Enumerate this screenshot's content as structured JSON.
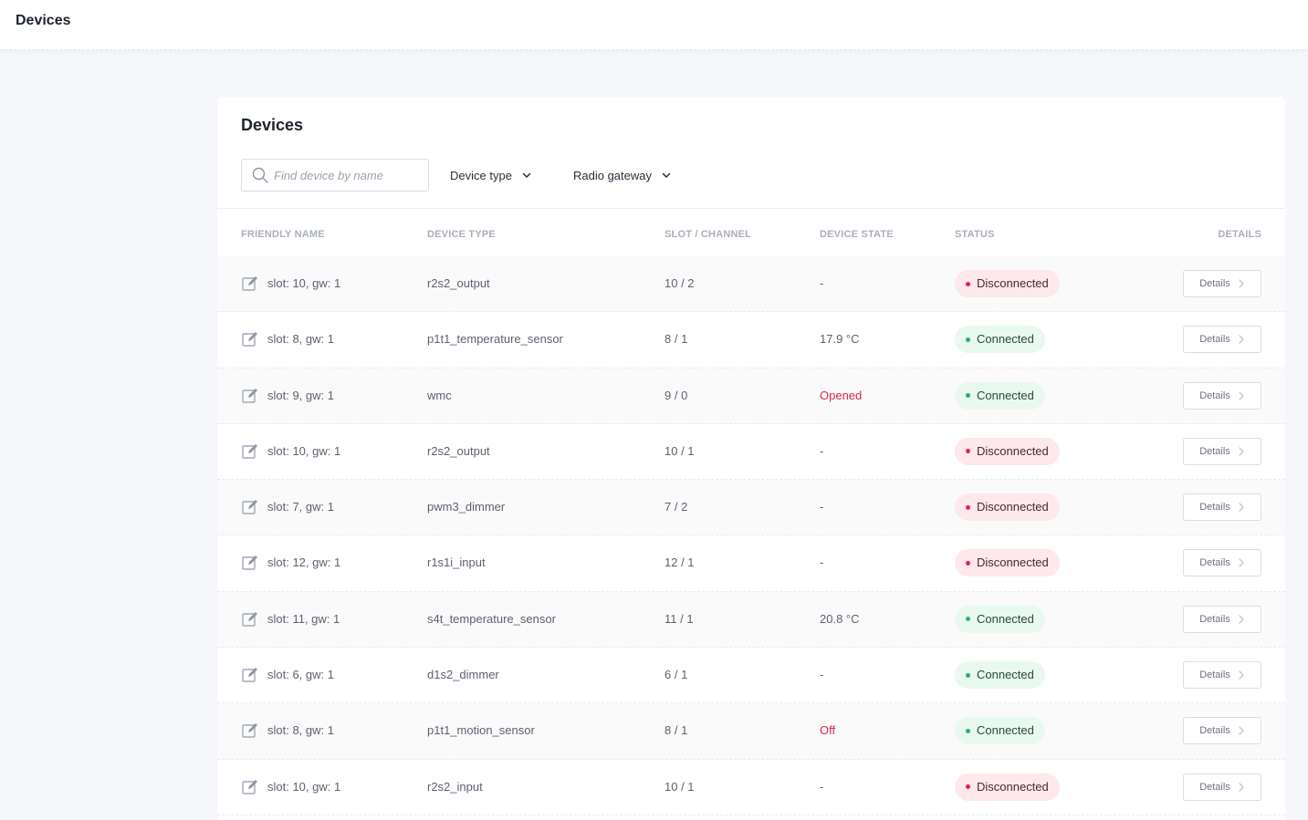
{
  "topbar": {
    "title": "Devices"
  },
  "card": {
    "title": "Devices"
  },
  "search": {
    "placeholder": "Find device by name",
    "value": ""
  },
  "filters": {
    "device_type": "Device type",
    "radio_gateway": "Radio gateway"
  },
  "columns": {
    "friendly_name": "FRIENDLY NAME",
    "device_type": "DEVICE TYPE",
    "slot_channel": "SLOT / CHANNEL",
    "device_state": "DEVICE STATE",
    "status": "STATUS",
    "details": "DETAILS"
  },
  "icons": {
    "search": "search-icon",
    "edit": "edit-icon",
    "dropdown": "chevron-down-icon",
    "details": "chevron-right-icon"
  },
  "colors": {
    "connected_dot": "#1fb866",
    "disconnected_dot": "#e0234e",
    "alert_state": "#e0234e"
  },
  "rows": [
    {
      "name": "slot: 10, gw: 1",
      "type": "r2s2_output",
      "slot": "10 / 2",
      "state": "-",
      "state_alert": false,
      "status": "Disconnected",
      "connected": false,
      "details": "Details"
    },
    {
      "name": "slot: 8, gw: 1",
      "type": "p1t1_temperature_sensor",
      "slot": "8 / 1",
      "state": "17.9 °C",
      "state_alert": false,
      "status": "Connected",
      "connected": true,
      "details": "Details"
    },
    {
      "name": "slot: 9, gw: 1",
      "type": "wmc",
      "slot": "9 / 0",
      "state": "Opened",
      "state_alert": true,
      "status": "Connected",
      "connected": true,
      "details": "Details"
    },
    {
      "name": "slot: 10, gw: 1",
      "type": "r2s2_output",
      "slot": "10 / 1",
      "state": "-",
      "state_alert": false,
      "status": "Disconnected",
      "connected": false,
      "details": "Details"
    },
    {
      "name": "slot: 7, gw: 1",
      "type": "pwm3_dimmer",
      "slot": "7 / 2",
      "state": "-",
      "state_alert": false,
      "status": "Disconnected",
      "connected": false,
      "details": "Details"
    },
    {
      "name": "slot: 12, gw: 1",
      "type": "r1s1i_input",
      "slot": "12 / 1",
      "state": "-",
      "state_alert": false,
      "status": "Disconnected",
      "connected": false,
      "details": "Details"
    },
    {
      "name": "slot: 11, gw: 1",
      "type": "s4t_temperature_sensor",
      "slot": "11 / 1",
      "state": "20.8 °C",
      "state_alert": false,
      "status": "Connected",
      "connected": true,
      "details": "Details"
    },
    {
      "name": "slot: 6, gw: 1",
      "type": "d1s2_dimmer",
      "slot": "6 / 1",
      "state": "-",
      "state_alert": false,
      "status": "Connected",
      "connected": true,
      "details": "Details"
    },
    {
      "name": "slot: 8, gw: 1",
      "type": "p1t1_motion_sensor",
      "slot": "8 / 1",
      "state": "Off",
      "state_alert": true,
      "status": "Connected",
      "connected": true,
      "details": "Details"
    },
    {
      "name": "slot: 10, gw: 1",
      "type": "r2s2_input",
      "slot": "10 / 1",
      "state": "-",
      "state_alert": false,
      "status": "Disconnected",
      "connected": false,
      "details": "Details"
    }
  ]
}
